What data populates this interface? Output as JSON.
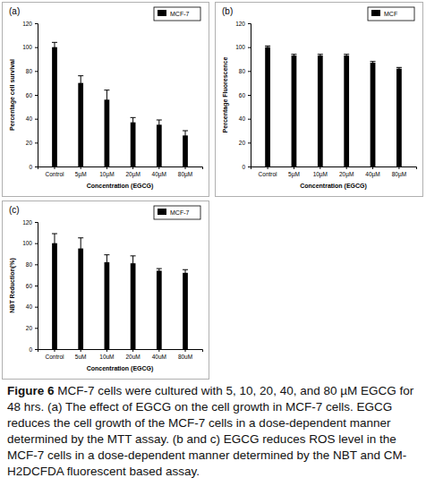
{
  "chart_data": [
    {
      "type": "bar",
      "title": "(a)",
      "y_label": "Percentage cell survival",
      "x_label": "Concentration (EGCG)",
      "categories": [
        "Control",
        "5µM",
        "10µM",
        "20µM",
        "40µM",
        "80µM"
      ],
      "series": [
        {
          "name": "MCF-7",
          "color": "#000000",
          "values": [
            100,
            70,
            56,
            37,
            35,
            26
          ],
          "errors": [
            4,
            6,
            8,
            4,
            4,
            4
          ]
        }
      ],
      "ylim": [
        0,
        120
      ],
      "yticks": [
        0,
        20,
        40,
        60,
        80,
        100,
        120
      ],
      "legend": "upper right"
    },
    {
      "type": "bar",
      "title": "(b)",
      "y_label": "Percentage Fluorescence",
      "x_label": "Concentration (EGCG)",
      "categories": [
        "Control",
        "5µM",
        "10µM",
        "20µM",
        "40µM",
        "80µM"
      ],
      "series": [
        {
          "name": "MCF",
          "color": "#000000",
          "values": [
            100,
            93,
            93,
            93,
            87,
            82
          ],
          "errors": [
            1,
            1,
            1,
            1,
            1,
            1
          ]
        }
      ],
      "ylim": [
        0,
        120
      ],
      "yticks": [
        0,
        20,
        40,
        60,
        80,
        100,
        120
      ],
      "legend": "upper right"
    },
    {
      "type": "bar",
      "title": "(c)",
      "y_label": "NBT Reduction(%)",
      "x_label": "Concentration (EGCG)",
      "categories": [
        "Control",
        "5uM",
        "10uM",
        "20uM",
        "40uM",
        "80uM"
      ],
      "series": [
        {
          "name": "MCF-7",
          "color": "#000000",
          "values": [
            100,
            95,
            82,
            81,
            74,
            72
          ],
          "errors": [
            9,
            10,
            7,
            7,
            2,
            3
          ]
        }
      ],
      "ylim": [
        0,
        120
      ],
      "yticks": [
        0,
        20,
        40,
        60,
        80,
        100,
        120
      ],
      "legend": "upper right"
    }
  ],
  "caption": {
    "label": "Figure 6",
    "text": "MCF-7 cells were cultured with 5, 10, 20, 40, and 80 µM EGCG for 48 hrs. (a) The effect of EGCG on the cell growth in MCF-7 cells. EGCG reduces the cell growth of the MCF-7 cells in a dose-dependent manner determined by the MTT assay. (b and c) EGCG reduces ROS level in the MCF-7 cells in a dose-dependent manner determined by the NBT and CM-H2DCFDA fluorescent based assay."
  }
}
